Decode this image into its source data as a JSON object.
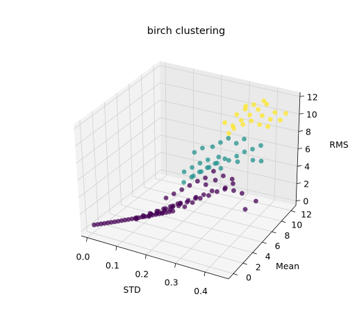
{
  "chart_data": {
    "type": "scatter",
    "projection": "3d",
    "title": "birch clustering",
    "xlabel": "STD",
    "ylabel": "Mean",
    "zlabel": "RMS",
    "xlim": [
      -0.02,
      0.48
    ],
    "ylim": [
      -1,
      13
    ],
    "zlim": [
      -0.5,
      12.5
    ],
    "xticks": [
      "0.0",
      "0.1",
      "0.2",
      "0.3",
      "0.4"
    ],
    "xtick_values": [
      0.0,
      0.1,
      0.2,
      0.3,
      0.4
    ],
    "yticks": [
      "0",
      "2",
      "4",
      "6",
      "8",
      "10",
      "12"
    ],
    "ytick_values": [
      0,
      2,
      4,
      6,
      8,
      10,
      12
    ],
    "zticks": [
      "0",
      "2",
      "4",
      "6",
      "8",
      "10",
      "12"
    ],
    "ztick_values": [
      0,
      2,
      4,
      6,
      8,
      10,
      12
    ],
    "grid": true,
    "colormap": "viridis",
    "cluster_colors": [
      "#440154",
      "#21918c",
      "#fde725"
    ],
    "series": [
      {
        "points": [
          [
            0.0,
            0.3,
            0.3
          ],
          [
            0.01,
            0.4,
            0.4
          ],
          [
            0.02,
            0.5,
            0.5
          ],
          [
            0.03,
            0.6,
            0.6
          ],
          [
            0.04,
            0.7,
            0.7
          ],
          [
            0.05,
            0.8,
            0.8
          ],
          [
            0.06,
            0.9,
            0.9
          ],
          [
            0.07,
            1.0,
            1.0
          ],
          [
            0.08,
            1.1,
            1.1
          ],
          [
            0.09,
            1.2,
            1.2
          ],
          [
            0.1,
            1.3,
            1.3
          ],
          [
            0.11,
            1.4,
            1.4
          ],
          [
            0.12,
            1.5,
            1.5
          ],
          [
            0.13,
            1.6,
            1.6
          ],
          [
            0.14,
            1.7,
            1.7
          ],
          [
            0.15,
            1.8,
            1.8
          ],
          [
            0.16,
            1.9,
            1.9
          ],
          [
            0.17,
            2.0,
            2.0
          ],
          [
            0.18,
            2.1,
            2.1
          ],
          [
            0.19,
            2.2,
            2.2
          ],
          [
            0.2,
            2.3,
            2.3
          ],
          [
            0.21,
            2.4,
            2.4
          ],
          [
            0.22,
            2.5,
            2.5
          ],
          [
            0.23,
            2.6,
            2.6
          ],
          [
            0.12,
            1.7,
            1.3
          ],
          [
            0.14,
            2.0,
            1.6
          ],
          [
            0.16,
            2.3,
            1.9
          ],
          [
            0.18,
            2.6,
            2.2
          ],
          [
            0.2,
            2.9,
            2.5
          ],
          [
            0.22,
            3.2,
            2.8
          ],
          [
            0.24,
            3.5,
            3.1
          ],
          [
            0.15,
            2.4,
            1.5
          ],
          [
            0.17,
            2.8,
            1.8
          ],
          [
            0.19,
            3.2,
            2.1
          ],
          [
            0.21,
            3.6,
            2.4
          ],
          [
            0.23,
            4.0,
            2.7
          ],
          [
            0.25,
            4.4,
            3.0
          ],
          [
            0.27,
            4.8,
            3.3
          ],
          [
            0.18,
            3.2,
            1.7
          ],
          [
            0.2,
            3.7,
            2.0
          ],
          [
            0.22,
            4.2,
            2.3
          ],
          [
            0.24,
            4.7,
            2.6
          ],
          [
            0.26,
            5.2,
            2.9
          ],
          [
            0.28,
            5.7,
            3.2
          ],
          [
            0.3,
            6.2,
            3.5
          ],
          [
            0.13,
            1.2,
            1.8
          ],
          [
            0.15,
            1.4,
            2.1
          ],
          [
            0.17,
            1.6,
            2.4
          ],
          [
            0.19,
            1.8,
            2.7
          ],
          [
            0.21,
            2.0,
            3.0
          ],
          [
            0.23,
            2.2,
            3.3
          ],
          [
            0.25,
            2.5,
            3.6
          ],
          [
            0.26,
            3.2,
            3.0
          ],
          [
            0.28,
            3.6,
            3.4
          ],
          [
            0.3,
            4.0,
            3.8
          ],
          [
            0.32,
            4.5,
            4.0
          ],
          [
            0.34,
            5.0,
            4.3
          ],
          [
            0.36,
            5.5,
            4.6
          ],
          [
            0.38,
            6.0,
            4.2
          ],
          [
            0.4,
            6.5,
            3.8
          ],
          [
            0.2,
            3.0,
            3.6
          ],
          [
            0.22,
            3.4,
            4.0
          ],
          [
            0.24,
            3.8,
            4.4
          ],
          [
            0.26,
            4.2,
            4.8
          ],
          [
            0.28,
            4.6,
            5.2
          ],
          [
            0.3,
            5.0,
            5.5
          ],
          [
            0.32,
            5.8,
            5.0
          ],
          [
            0.34,
            6.2,
            5.4
          ],
          [
            0.36,
            6.8,
            4.9
          ],
          [
            0.42,
            6.0,
            2.5
          ],
          [
            0.44,
            7.0,
            3.0
          ],
          [
            0.33,
            7.0,
            3.5
          ],
          [
            0.35,
            7.5,
            4.0
          ],
          [
            0.29,
            5.6,
            4.4
          ],
          [
            0.31,
            6.0,
            5.8
          ]
        ]
      },
      {
        "points": [
          [
            0.24,
            4.2,
            5.0
          ],
          [
            0.26,
            4.6,
            5.5
          ],
          [
            0.28,
            5.0,
            6.0
          ],
          [
            0.3,
            5.4,
            6.4
          ],
          [
            0.32,
            5.8,
            6.8
          ],
          [
            0.27,
            4.4,
            5.8
          ],
          [
            0.29,
            4.8,
            6.2
          ],
          [
            0.31,
            5.2,
            6.6
          ],
          [
            0.33,
            5.6,
            7.0
          ],
          [
            0.35,
            6.0,
            7.4
          ],
          [
            0.25,
            3.8,
            6.4
          ],
          [
            0.27,
            4.2,
            6.8
          ],
          [
            0.29,
            4.6,
            7.2
          ],
          [
            0.31,
            5.0,
            7.5
          ],
          [
            0.34,
            5.4,
            7.8
          ],
          [
            0.36,
            6.2,
            7.2
          ],
          [
            0.38,
            6.6,
            7.6
          ],
          [
            0.4,
            7.0,
            8.0
          ],
          [
            0.42,
            7.5,
            7.0
          ],
          [
            0.44,
            8.0,
            6.8
          ],
          [
            0.3,
            6.4,
            8.2
          ],
          [
            0.32,
            6.8,
            8.6
          ],
          [
            0.34,
            7.2,
            9.0
          ],
          [
            0.36,
            7.6,
            8.4
          ],
          [
            0.38,
            8.0,
            8.8
          ],
          [
            0.4,
            8.5,
            7.6
          ],
          [
            0.42,
            9.0,
            7.9
          ],
          [
            0.26,
            5.2,
            7.9
          ],
          [
            0.28,
            5.6,
            8.3
          ],
          [
            0.33,
            6.3,
            6.1
          ],
          [
            0.37,
            7.3,
            6.6
          ]
        ]
      },
      {
        "points": [
          [
            0.34,
            8.0,
            10.0
          ],
          [
            0.36,
            8.5,
            10.5
          ],
          [
            0.38,
            9.0,
            11.0
          ],
          [
            0.4,
            9.5,
            11.5
          ],
          [
            0.42,
            10.0,
            12.0
          ],
          [
            0.44,
            10.5,
            11.0
          ],
          [
            0.35,
            8.2,
            11.2
          ],
          [
            0.37,
            8.7,
            11.7
          ],
          [
            0.39,
            9.2,
            12.1
          ],
          [
            0.41,
            9.7,
            10.8
          ],
          [
            0.43,
            10.2,
            10.3
          ],
          [
            0.32,
            7.6,
            10.4
          ],
          [
            0.34,
            8.2,
            9.6
          ],
          [
            0.36,
            8.8,
            9.9
          ],
          [
            0.38,
            9.3,
            10.2
          ],
          [
            0.4,
            9.8,
            9.7
          ],
          [
            0.42,
            10.3,
            9.4
          ],
          [
            0.45,
            11.0,
            10.0
          ],
          [
            0.46,
            11.5,
            10.6
          ],
          [
            0.33,
            7.8,
            9.2
          ],
          [
            0.37,
            8.8,
            12.0
          ],
          [
            0.41,
            10.0,
            12.3
          ]
        ]
      }
    ]
  }
}
